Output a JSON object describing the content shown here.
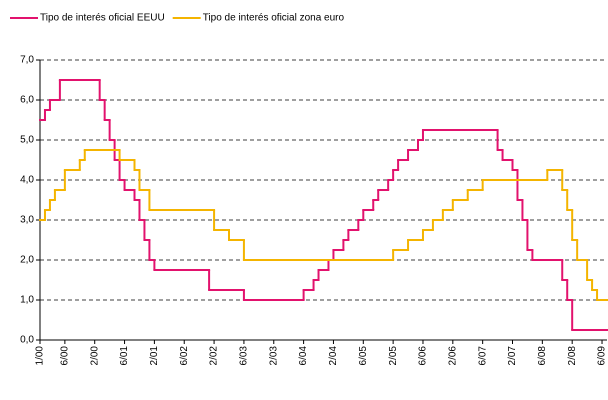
{
  "chart_data": {
    "type": "step-line",
    "x_range": [
      "1/00",
      "7/09"
    ],
    "xticks": [
      {
        "value": "1/00",
        "label": "1/00"
      },
      {
        "value": "6/00",
        "label": "6/00"
      },
      {
        "value": "12/00",
        "label": "2/00"
      },
      {
        "value": "6/01",
        "label": "6/01"
      },
      {
        "value": "12/01",
        "label": "2/01"
      },
      {
        "value": "6/02",
        "label": "6/02"
      },
      {
        "value": "12/02",
        "label": "2/02"
      },
      {
        "value": "6/03",
        "label": "6/03"
      },
      {
        "value": "12/03",
        "label": "2/03"
      },
      {
        "value": "6/04",
        "label": "6/04"
      },
      {
        "value": "12/04",
        "label": "2/04"
      },
      {
        "value": "6/05",
        "label": "6/05"
      },
      {
        "value": "12/05",
        "label": "2/05"
      },
      {
        "value": "6/06",
        "label": "6/06"
      },
      {
        "value": "12/06",
        "label": "2/06"
      },
      {
        "value": "6/07",
        "label": "6/07"
      },
      {
        "value": "12/07",
        "label": "2/07"
      },
      {
        "value": "6/08",
        "label": "6/08"
      },
      {
        "value": "12/08",
        "label": "2/08"
      },
      {
        "value": "6/09",
        "label": "6/09"
      }
    ],
    "ylim": [
      0,
      7
    ],
    "yticks": [
      {
        "value": 0,
        "label": "0,0"
      },
      {
        "value": 1,
        "label": "1,0"
      },
      {
        "value": 2,
        "label": "2,0"
      },
      {
        "value": 3,
        "label": "3,0"
      },
      {
        "value": 4,
        "label": "4,0"
      },
      {
        "value": 5,
        "label": "5,0"
      },
      {
        "value": 6,
        "label": "6,0"
      },
      {
        "value": 7,
        "label": "7,0"
      }
    ],
    "grid": true,
    "legend": "top-left",
    "series": [
      {
        "name": "Tipo de interés oficial EEUU",
        "color": "#e2126d",
        "x": [
          "1/00",
          "2/00",
          "3/00",
          "5/00",
          "1/01",
          "2/01",
          "3/01",
          "4/01",
          "5/01",
          "6/01",
          "8/01",
          "9/01",
          "10/01",
          "11/01",
          "12/01",
          "11/02",
          "6/03",
          "6/04",
          "8/04",
          "9/04",
          "11/04",
          "12/04",
          "2/05",
          "3/05",
          "5/05",
          "6/05",
          "8/05",
          "9/05",
          "11/05",
          "12/05",
          "1/06",
          "3/06",
          "5/06",
          "6/06",
          "9/07",
          "10/07",
          "12/07",
          "1/08",
          "2/08",
          "3/08",
          "4/08",
          "10/08",
          "11/08",
          "12/08"
        ],
        "values": [
          5.5,
          5.75,
          6.0,
          6.5,
          6.0,
          5.5,
          5.0,
          4.5,
          4.0,
          3.75,
          3.5,
          3.0,
          2.5,
          2.0,
          1.75,
          1.25,
          1.0,
          1.25,
          1.5,
          1.75,
          2.0,
          2.25,
          2.5,
          2.75,
          3.0,
          3.25,
          3.5,
          3.75,
          4.0,
          4.25,
          4.5,
          4.75,
          5.0,
          5.25,
          4.75,
          4.5,
          4.25,
          3.5,
          3.0,
          2.25,
          2.0,
          1.5,
          1.0,
          0.25
        ]
      },
      {
        "name": "Tipo de interés oficial zona euro",
        "color": "#f4b400",
        "x": [
          "1/00",
          "2/00",
          "3/00",
          "4/00",
          "6/00",
          "9/00",
          "10/00",
          "5/01",
          "8/01",
          "9/01",
          "11/01",
          "12/02",
          "3/03",
          "6/03",
          "12/05",
          "3/06",
          "6/06",
          "8/06",
          "10/06",
          "12/06",
          "3/07",
          "6/07",
          "7/08",
          "10/08",
          "11/08",
          "12/08",
          "1/09",
          "3/09",
          "4/09",
          "5/09"
        ],
        "values": [
          3.0,
          3.25,
          3.5,
          3.75,
          4.25,
          4.5,
          4.75,
          4.5,
          4.25,
          3.75,
          3.25,
          2.75,
          2.5,
          2.0,
          2.25,
          2.5,
          2.75,
          3.0,
          3.25,
          3.5,
          3.75,
          4.0,
          4.25,
          3.75,
          3.25,
          2.5,
          2.0,
          1.5,
          1.25,
          1.0
        ]
      }
    ]
  }
}
